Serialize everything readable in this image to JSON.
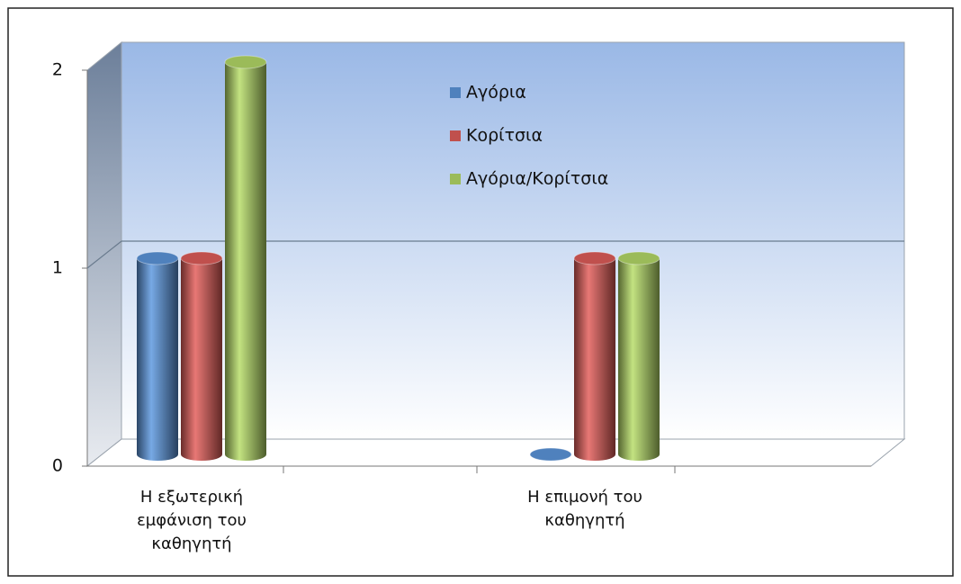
{
  "chart_data": {
    "type": "bar3d",
    "categories": [
      "Η εξωτερική εμφάνιση του καθηγητή",
      "Η επιμονή του καθηγητή"
    ],
    "series": [
      {
        "name": "Αγόρια",
        "color": "#4f81bd",
        "values": [
          1,
          0
        ]
      },
      {
        "name": "Κορίτσια",
        "color": "#c0504d",
        "values": [
          1,
          1
        ]
      },
      {
        "name": "Αγόρια/Κορίτσια",
        "color": "#9bbb59",
        "values": [
          2,
          1
        ]
      }
    ],
    "ylim": [
      0,
      2
    ],
    "yticks": [
      0,
      1,
      2
    ],
    "grid": true
  }
}
